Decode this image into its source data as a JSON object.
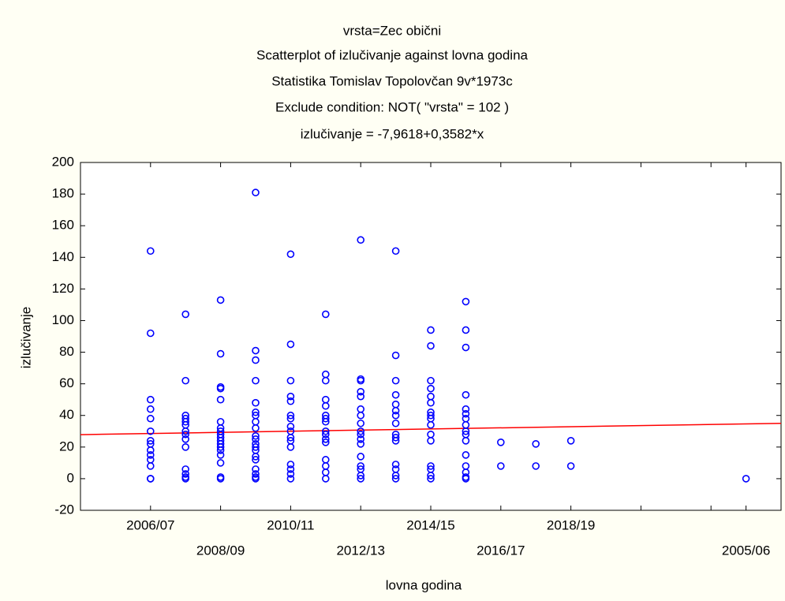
{
  "chart_data": {
    "type": "scatter",
    "titles": [
      "vrsta=Zec obični",
      "Scatterplot of izlučivanje against lovna godina",
      "Statistika Tomislav Topolovčan 9v*1973c",
      "Exclude condition: NOT( \"vrsta\" = 102 )",
      "izlučivanje = -7,9618+0,3582*x"
    ],
    "x_label": "lovna godina",
    "y_label": "izlučivanje",
    "xlim": [
      100,
      120
    ],
    "ylim": [
      -20,
      200
    ],
    "xticks": [
      {
        "value": 102,
        "label": "2006/07"
      },
      {
        "value": 104,
        "label": "2008/09"
      },
      {
        "value": 106,
        "label": "2010/11"
      },
      {
        "value": 108,
        "label": "2012/13"
      },
      {
        "value": 110,
        "label": "2014/15"
      },
      {
        "value": 112,
        "label": "2016/17"
      },
      {
        "value": 114,
        "label": "2018/19"
      },
      {
        "value": 116,
        "label": null
      },
      {
        "value": 118,
        "label": null
      },
      {
        "value": 119,
        "label": "2005/06"
      }
    ],
    "yticks": [
      -20,
      0,
      20,
      40,
      60,
      80,
      100,
      120,
      140,
      160,
      180,
      200
    ],
    "fit": {
      "intercept": -7.9618,
      "slope": 0.3582,
      "color": "#ff0000"
    },
    "series": [
      {
        "color": "#0000ff",
        "x": [
          102,
          102,
          102,
          102,
          102,
          102,
          102,
          102,
          102,
          102,
          102,
          102,
          102,
          102,
          103,
          103,
          103,
          103,
          103,
          103,
          103,
          103,
          103,
          103,
          103,
          103,
          103,
          103,
          104,
          104,
          104,
          104,
          104,
          104,
          104,
          104,
          104,
          104,
          104,
          104,
          104,
          104,
          104,
          104,
          104,
          104,
          105,
          105,
          105,
          105,
          105,
          105,
          105,
          105,
          105,
          105,
          105,
          105,
          105,
          105,
          105,
          105,
          105,
          105,
          105,
          105,
          106,
          106,
          106,
          106,
          106,
          106,
          106,
          106,
          106,
          106,
          106,
          106,
          106,
          106,
          106,
          106,
          107,
          107,
          107,
          107,
          107,
          107,
          107,
          107,
          107,
          107,
          107,
          107,
          107,
          107,
          107,
          107,
          108,
          108,
          108,
          108,
          108,
          108,
          108,
          108,
          108,
          108,
          108,
          108,
          108,
          108,
          108,
          108,
          108,
          109,
          109,
          109,
          109,
          109,
          109,
          109,
          109,
          109,
          109,
          109,
          109,
          109,
          109,
          109,
          110,
          110,
          110,
          110,
          110,
          110,
          110,
          110,
          110,
          110,
          110,
          110,
          110,
          110,
          110,
          110,
          111,
          111,
          111,
          111,
          111,
          111,
          111,
          111,
          111,
          111,
          111,
          111,
          111,
          111,
          111,
          111,
          112,
          112,
          113,
          113,
          114,
          114,
          119
        ],
        "values": [
          144,
          92,
          50,
          44,
          38,
          30,
          24,
          22,
          18,
          15,
          12,
          8,
          0,
          0,
          104,
          62,
          40,
          38,
          36,
          34,
          30,
          28,
          25,
          20,
          6,
          3,
          1,
          0,
          113,
          79,
          58,
          57,
          50,
          36,
          32,
          30,
          28,
          26,
          24,
          22,
          20,
          18,
          15,
          10,
          1,
          0,
          181,
          81,
          75,
          62,
          48,
          42,
          40,
          36,
          32,
          27,
          25,
          22,
          20,
          18,
          14,
          12,
          6,
          3,
          1,
          0,
          142,
          85,
          62,
          52,
          49,
          40,
          38,
          33,
          30,
          26,
          24,
          20,
          9,
          6,
          3,
          0,
          104,
          66,
          62,
          50,
          46,
          40,
          38,
          36,
          30,
          28,
          25,
          23,
          12,
          8,
          4,
          0,
          151,
          63,
          62,
          55,
          52,
          44,
          40,
          35,
          30,
          28,
          25,
          22,
          14,
          8,
          6,
          2,
          0,
          144,
          78,
          62,
          53,
          47,
          43,
          40,
          35,
          28,
          26,
          24,
          9,
          6,
          2,
          0,
          94,
          84,
          62,
          57,
          52,
          48,
          42,
          40,
          38,
          34,
          28,
          24,
          8,
          6,
          2,
          0,
          112,
          94,
          83,
          53,
          44,
          41,
          38,
          34,
          30,
          28,
          24,
          15,
          8,
          4,
          1,
          0,
          23,
          8,
          22,
          8,
          24,
          8,
          0
        ]
      }
    ]
  }
}
